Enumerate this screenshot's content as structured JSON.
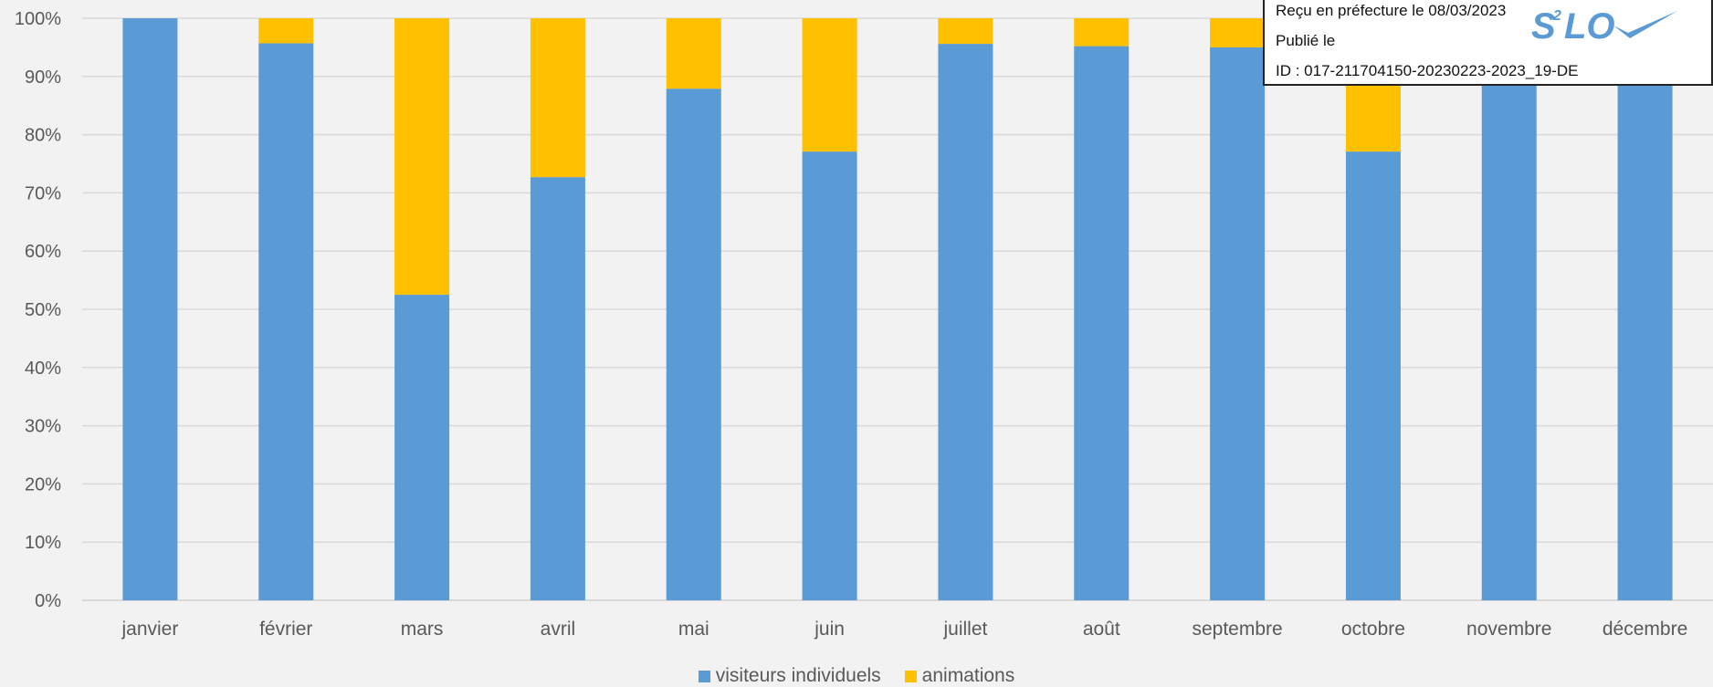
{
  "chart_data": {
    "type": "bar",
    "stacked": true,
    "percent": true,
    "categories": [
      "janvier",
      "février",
      "mars",
      "avril",
      "mai",
      "juin",
      "juillet",
      "août",
      "septembre",
      "octobre",
      "novembre",
      "décembre"
    ],
    "series": [
      {
        "name": "visiteurs individuels",
        "color": "#5b9bd5",
        "values": [
          100,
          95.7,
          52.5,
          72.7,
          87.9,
          77.1,
          95.6,
          95.2,
          95.0,
          77.1,
          95.0,
          92.0
        ]
      },
      {
        "name": "animations",
        "color": "#ffc000",
        "values": [
          0,
          4.3,
          47.5,
          27.3,
          12.1,
          22.9,
          4.4,
          4.8,
          5.0,
          22.9,
          5.0,
          8.0
        ]
      }
    ],
    "ylim": [
      0,
      100
    ],
    "yticks": [
      "0%",
      "10%",
      "20%",
      "30%",
      "40%",
      "50%",
      "60%",
      "70%",
      "80%",
      "90%",
      "100%"
    ],
    "grid": true,
    "legend": "bottom-center"
  },
  "stamp": {
    "received": "Reçu en préfecture le 08/03/2023",
    "published": "Publié le",
    "id": "ID : 017-211704150-20230223-2023_19-DE",
    "logo_text": "S²LO",
    "logo_color": "#5b9bd5"
  }
}
